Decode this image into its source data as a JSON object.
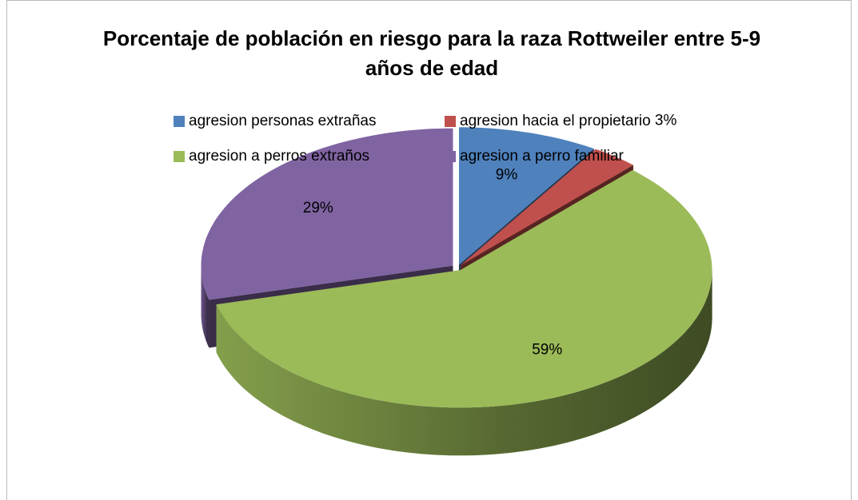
{
  "chart_data": {
    "type": "pie",
    "title": "Porcentaje de población en riesgo para la raza Rottweiler entre 5-9 años de edad",
    "categories": [
      "agresion personas extrañas",
      "agresion hacia el propietario",
      "agresion a perros extraños",
      "agresion a perro familiar"
    ],
    "values": [
      9,
      3,
      59,
      29
    ],
    "value_labels": [
      "9%",
      "3%",
      "59%",
      "29%"
    ],
    "colors": [
      "#4f81bd",
      "#c0504d",
      "#9bbb59",
      "#8064a2"
    ],
    "legend": "top"
  }
}
